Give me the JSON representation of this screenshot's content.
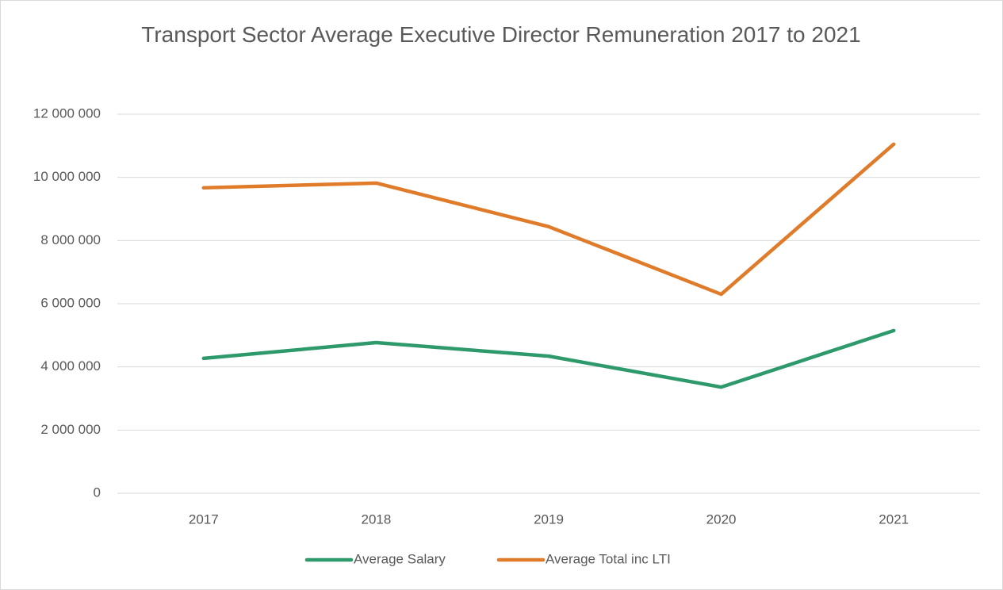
{
  "chart_data": {
    "type": "line",
    "title": "Transport Sector Average Executive Director Remuneration 2017 to 2021",
    "categories": [
      "2017",
      "2018",
      "2019",
      "2020",
      "2021"
    ],
    "series": [
      {
        "name": "Average Salary",
        "color": "#2e9a6c",
        "values": [
          4270000,
          4770000,
          4340000,
          3360000,
          5150000
        ]
      },
      {
        "name": "Average Total inc LTI",
        "color": "#e07b2a",
        "values": [
          9670000,
          9820000,
          8440000,
          6300000,
          11050000
        ]
      }
    ],
    "ylim": [
      0,
      12000000
    ],
    "yticks": [
      0,
      {
        "value": 2000000,
        "label": "2 000 000"
      },
      {
        "value": 4000000,
        "label": "4 000 000"
      },
      {
        "value": 6000000,
        "label": "6 000 000"
      },
      {
        "value": 8000000,
        "label": "8 000 000"
      },
      {
        "value": 10000000,
        "label": "10 000 000"
      },
      {
        "value": 12000000,
        "label": "12 000 000"
      }
    ],
    "grid": true,
    "legend": "bottom"
  }
}
